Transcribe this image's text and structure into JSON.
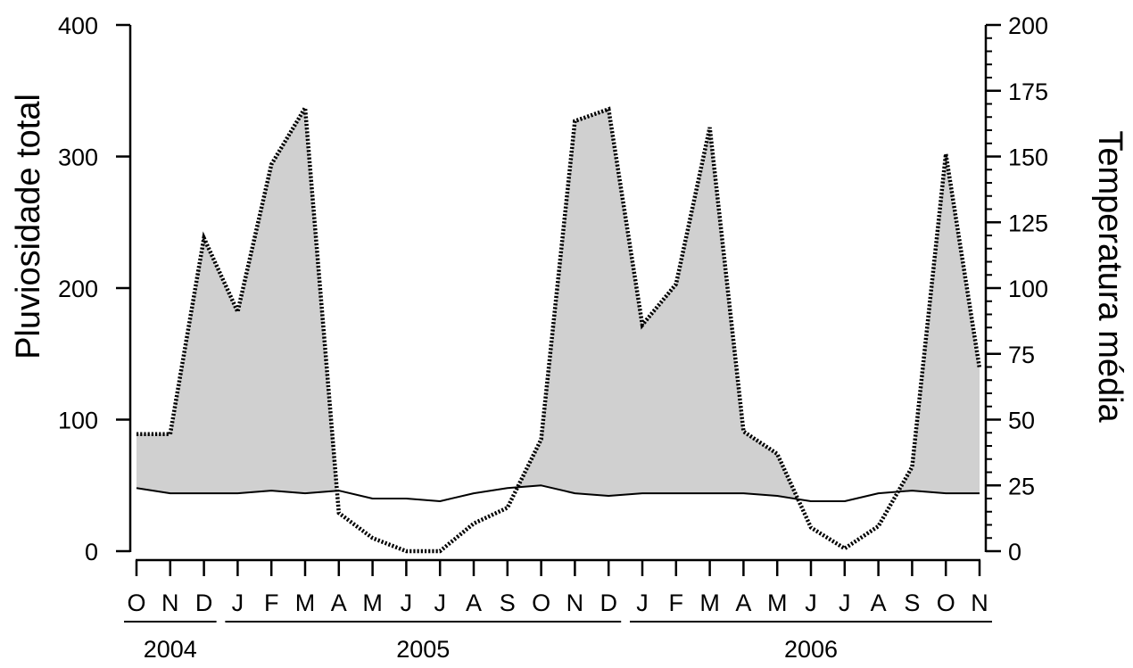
{
  "chart_data": {
    "type": "line",
    "ylabel": "Pluviosidade total",
    "y2label": "Temperatura média",
    "ylim": [
      0,
      400
    ],
    "y2lim": [
      0,
      200
    ],
    "yticks": [
      0,
      100,
      200,
      300,
      400
    ],
    "y2ticks": [
      0,
      25,
      50,
      75,
      100,
      125,
      150,
      175,
      200
    ],
    "y2_minor_tick_step": 5,
    "grid": false,
    "legend": "none",
    "shaded_area_color": "#d0d0d0",
    "categories": [
      "O",
      "N",
      "D",
      "J",
      "F",
      "M",
      "A",
      "M",
      "J",
      "J",
      "A",
      "S",
      "O",
      "N",
      "D",
      "J",
      "F",
      "M",
      "A",
      "M",
      "J",
      "J",
      "A",
      "S",
      "O",
      "N"
    ],
    "year_groups": [
      {
        "label": "2004",
        "start_index": 0,
        "end_index": 2
      },
      {
        "label": "2005",
        "start_index": 3,
        "end_index": 14
      },
      {
        "label": "2006",
        "start_index": 15,
        "end_index": 25
      }
    ],
    "series": [
      {
        "axis": "left",
        "style": "dotted",
        "values": [
          89,
          89,
          238,
          182,
          294,
          337,
          29,
          10,
          0,
          0,
          21,
          33,
          85,
          327,
          336,
          172,
          203,
          322,
          91,
          74,
          18,
          2,
          19,
          64,
          302,
          139
        ]
      },
      {
        "axis": "right",
        "style": "solid",
        "values": [
          24,
          22,
          22,
          22,
          23,
          22,
          23,
          20,
          20,
          19,
          22,
          24,
          25,
          22,
          21,
          22,
          22,
          22,
          22,
          21,
          19,
          19,
          22,
          23,
          22,
          22
        ]
      }
    ]
  }
}
